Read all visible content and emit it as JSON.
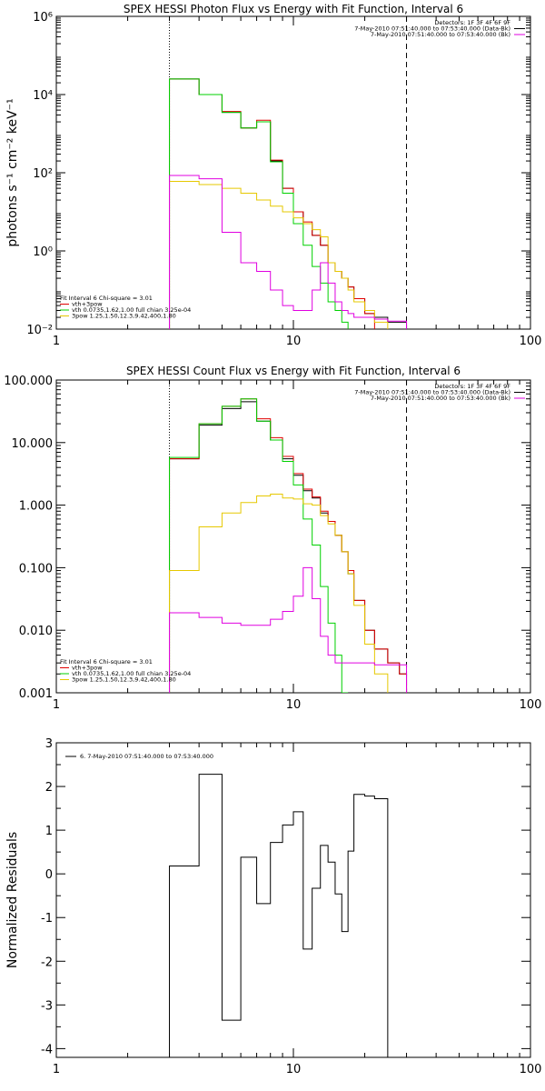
{
  "chart_data": [
    {
      "type": "line",
      "title": "SPEX HESSI Photon Flux vs Energy with Fit Function, Interval 6",
      "ylabel": "photons s⁻¹ cm⁻² keV⁻¹",
      "xlabel": "",
      "xscale": "log",
      "yscale": "log",
      "xlim": [
        1,
        100
      ],
      "ylim": [
        0.01,
        1000000
      ],
      "x_ticks": [
        "1",
        "10",
        "100"
      ],
      "y_ticks": [
        "10⁻²",
        "10⁰",
        "10²",
        "10⁴",
        "10⁶"
      ],
      "y_tick_values": [
        0.01,
        1,
        100,
        10000,
        1000000
      ],
      "top_right_annotations": [
        "Detectors: 1F 3F 4F 6F 9F",
        "7-May-2010 07:51:40.000 to 07:53:40.000 (Data-Bk)",
        "7-May-2010 07:51:40.000 to 07:53:40.000 (Bk)"
      ],
      "legend": [
        "Fit Interval 6   Chi-square = 3.01",
        "vth+3pow",
        "vth 0.0735,1.62,1.00  full chian 3.25e-04",
        "3pow 1.25,1.50,12.3,9.42,400,1.80"
      ],
      "vlines": [
        {
          "x": 3,
          "style": "dotted"
        },
        {
          "x": 30,
          "style": "dashed"
        }
      ],
      "edges": [
        3,
        4,
        5,
        6,
        7,
        8,
        9,
        10,
        11,
        12,
        13,
        14,
        15,
        16,
        17,
        18,
        20,
        22,
        25,
        28,
        30
      ],
      "series": [
        {
          "color": "#000000",
          "values": [
            25000,
            10000,
            3500,
            1400,
            2000,
            200,
            40,
            10,
            5,
            2.5,
            1.4,
            0.5,
            0.3,
            0.2,
            0.12,
            0.06,
            0.025,
            0.02,
            0.015,
            0.015
          ]
        },
        {
          "color": "#e00000",
          "values": [
            25000,
            10000,
            3700,
            1400,
            2200,
            210,
            40,
            10,
            5.5,
            2.5,
            1.4,
            0.5,
            0.3,
            0.2,
            0.12,
            0.06,
            0.025
          ]
        },
        {
          "color": "#00d000",
          "values": [
            25000,
            10000,
            3500,
            1400,
            2000,
            190,
            30,
            5,
            1.4,
            0.4,
            0.15,
            0.05,
            0.03,
            0.015
          ]
        },
        {
          "color": "#e6c800",
          "values": [
            60,
            50,
            40,
            30,
            20,
            14,
            10,
            7,
            5,
            3.5,
            2.3,
            0.5,
            0.3,
            0.2,
            0.1,
            0.05,
            0.03,
            0.015
          ]
        },
        {
          "color": "#e000e0",
          "values": [
            85,
            70,
            3,
            0.5,
            0.3,
            0.1,
            0.04,
            0.03,
            0.03,
            0.1,
            0.5,
            0.15,
            0.05,
            0.03,
            0.025,
            0.02,
            0.02,
            0.018,
            0.016,
            0.016
          ]
        }
      ]
    },
    {
      "type": "line",
      "title": "SPEX HESSI Count Flux vs Energy with Fit Function, Interval 6",
      "xlabel": "",
      "ylabel": "",
      "xscale": "log",
      "yscale": "log",
      "xlim": [
        1,
        100
      ],
      "ylim": [
        0.001,
        100
      ],
      "x_ticks": [
        "1",
        "10",
        "100"
      ],
      "y_ticks": [
        "0.001",
        "0.010",
        "0.100",
        "1.000",
        "10.000",
        "100.000"
      ],
      "y_tick_values": [
        0.001,
        0.01,
        0.1,
        1,
        10,
        100
      ],
      "top_right_annotations": [
        "Detectors: 1F 3F 4F 6F 9F",
        "7-May-2010 07:51:40.000 to 07:53:40.000 (Data-Bk)",
        "7-May-2010 07:51:40.000 to 07:53:40.000 (Bk)"
      ],
      "legend": [
        "Fit Interval 6   Chi-square = 3.01",
        "vth+3pow",
        "vth 0.0735,1.62,1.00  full chian 3.25e-04",
        "3pow 1.25,1.50,12.3,9.42,400,1.80"
      ],
      "vlines": [
        {
          "x": 3,
          "style": "dotted"
        },
        {
          "x": 30,
          "style": "dashed"
        }
      ],
      "edges": [
        3,
        4,
        5,
        6,
        7,
        8,
        9,
        10,
        11,
        12,
        13,
        14,
        15,
        16,
        17,
        18,
        20,
        22,
        25,
        28,
        30
      ],
      "series": [
        {
          "color": "#000000",
          "values": [
            5.5,
            19,
            35,
            45,
            22,
            11,
            5.5,
            3,
            1.7,
            1.3,
            0.75,
            0.55,
            0.33,
            0.18,
            0.08,
            0.03,
            0.01,
            0.005,
            0.003,
            0.002
          ]
        },
        {
          "color": "#e00000",
          "values": [
            5.5,
            20,
            38,
            50,
            24,
            12,
            6,
            3.2,
            1.8,
            1.35,
            0.8,
            0.55,
            0.33,
            0.18,
            0.09,
            0.03,
            0.01,
            0.005,
            0.003,
            0.002
          ]
        },
        {
          "color": "#00d000",
          "values": [
            5.8,
            20,
            38,
            50,
            22,
            11,
            5,
            2.1,
            0.6,
            0.23,
            0.05,
            0.013,
            0.004,
            0.001
          ]
        },
        {
          "color": "#e6c800",
          "values": [
            0.09,
            0.45,
            0.75,
            1.1,
            1.4,
            1.5,
            1.3,
            1.25,
            1.05,
            1.0,
            0.68,
            0.5,
            0.33,
            0.18,
            0.08,
            0.025,
            0.006,
            0.002
          ]
        },
        {
          "color": "#e000e0",
          "values": [
            0.019,
            0.016,
            0.013,
            0.012,
            0.012,
            0.015,
            0.02,
            0.035,
            0.1,
            0.032,
            0.008,
            0.004,
            0.003,
            0.003,
            0.003,
            0.003,
            0.003,
            0.0028,
            0.0028,
            0.0028
          ]
        }
      ]
    },
    {
      "type": "line",
      "title": "",
      "xlabel": "",
      "ylabel": "Normalized Residuals",
      "xscale": "log",
      "yscale": "linear",
      "xlim": [
        1,
        100
      ],
      "ylim": [
        -4.2,
        3
      ],
      "x_ticks": [
        "1",
        "10",
        "100"
      ],
      "y_ticks": [
        "-4",
        "-3",
        "-2",
        "-1",
        "0",
        "1",
        "2",
        "3"
      ],
      "y_tick_values": [
        -4,
        -3,
        -2,
        -1,
        0,
        1,
        2,
        3
      ],
      "legend": [
        "6.  7-May-2010 07:51:40.000 to 07:53:40.000"
      ],
      "edges": [
        3,
        4,
        5,
        6,
        7,
        8,
        9,
        10,
        11,
        12,
        13,
        14,
        15,
        16,
        17,
        18,
        20,
        22,
        25,
        28,
        30
      ],
      "series": [
        {
          "color": "#000000",
          "values": [
            0.18,
            2.28,
            -3.35,
            0.38,
            -0.68,
            0.72,
            1.12,
            1.42,
            -1.72,
            -0.33,
            0.65,
            0.27,
            -0.46,
            -1.32,
            0.52,
            1.82,
            1.78,
            1.72
          ]
        }
      ]
    }
  ]
}
